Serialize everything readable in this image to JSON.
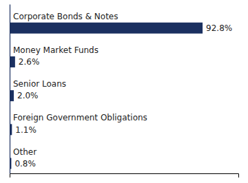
{
  "chart_data": {
    "type": "bar",
    "orientation": "horizontal",
    "categories": [
      "Corporate Bonds & Notes",
      "Money Market Funds",
      "Senior Loans",
      "Foreign Government Obligations",
      "Other"
    ],
    "values": [
      92.8,
      2.6,
      2.0,
      1.1,
      0.8
    ],
    "value_labels": [
      "92.8%",
      "2.6%",
      "2.0%",
      "1.1%",
      "0.8%"
    ],
    "color": "#1b3060",
    "xlim": [
      0,
      110
    ],
    "tick_labels": false,
    "data_labels": true
  }
}
